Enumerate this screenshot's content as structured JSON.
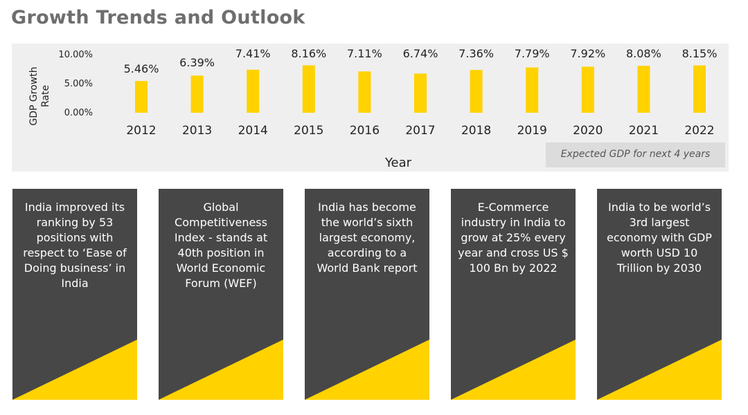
{
  "title": "Growth Trends and Outlook",
  "note": "Expected GDP for next 4 years",
  "colors": {
    "bar": "#ffd200",
    "panel": "#efefef",
    "card": "#474747",
    "wedge": "#ffd200"
  },
  "chart_data": {
    "type": "bar",
    "categories": [
      "2012",
      "2013",
      "2014",
      "2015",
      "2016",
      "2017",
      "2018",
      "2019",
      "2020",
      "2021",
      "2022"
    ],
    "values": [
      5.46,
      6.39,
      7.41,
      8.16,
      7.11,
      6.74,
      7.36,
      7.79,
      7.92,
      8.08,
      8.15
    ],
    "value_labels": [
      "5.46%",
      "6.39%",
      "7.41%",
      "8.16%",
      "7.11%",
      "6.74%",
      "7.36%",
      "7.79%",
      "7.92%",
      "8.08%",
      "8.15%"
    ],
    "xlabel": "Year",
    "ylabel": "GDP Growth Rate",
    "ylim": [
      0,
      10
    ],
    "yticks": [
      0,
      5,
      10
    ],
    "ytick_labels": [
      "0.00%",
      "5.00%",
      "10.00%"
    ],
    "grid": false
  },
  "cards": [
    {
      "text": "India improved its ranking by 53 positions with respect to ‘Ease of Doing business’ in India"
    },
    {
      "text": "Global Competitiveness Index - stands at 40th position in World Economic Forum (WEF)"
    },
    {
      "text": "India has become the world’s sixth largest economy, according to a World Bank report"
    },
    {
      "text": "E-Commerce industry in India to grow at 25% every year and cross US $ 100 Bn by 2022"
    },
    {
      "text": "India to be world’s 3rd largest economy with GDP worth USD 10 Trillion by 2030"
    }
  ]
}
